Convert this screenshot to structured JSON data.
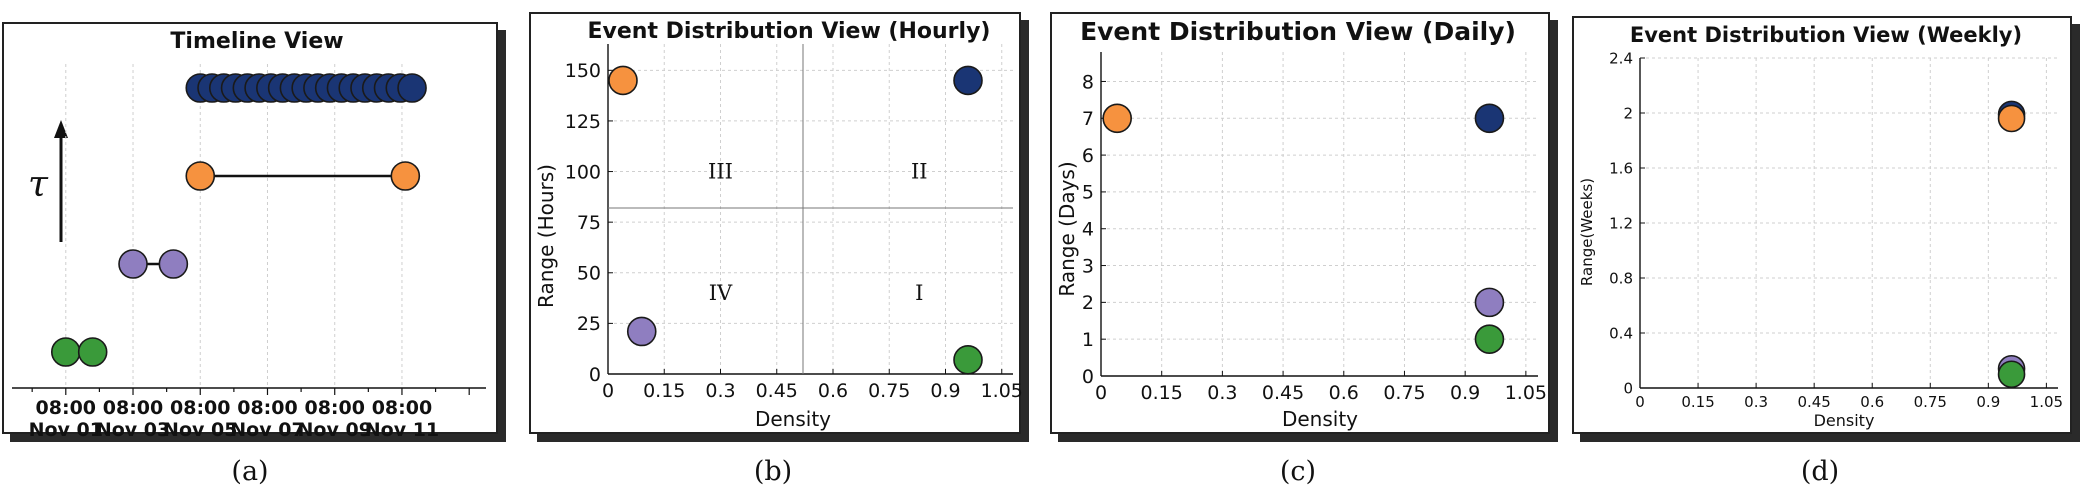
{
  "captions": [
    "(a)",
    "(b)",
    "(c)",
    "(d)"
  ],
  "colors": {
    "green": "#3a9a3a",
    "purple": "#8f7ec0",
    "orange": "#f6923f",
    "navy": "#1a3574"
  },
  "chart_data": [
    {
      "type": "timeline",
      "title": "Timeline View",
      "tau_label": "τ",
      "x_ticks": [
        {
          "time": "08:00",
          "date": "Nov 01"
        },
        {
          "time": "08:00",
          "date": "Nov 03"
        },
        {
          "time": "08:00",
          "date": "Nov 05"
        },
        {
          "time": "08:00",
          "date": "Nov 07"
        },
        {
          "time": "08:00",
          "date": "Nov 09"
        },
        {
          "time": "08:00",
          "date": "Nov 11"
        }
      ],
      "x_domain": [
        -1.6,
        12.5
      ],
      "rows": [
        {
          "color": "green",
          "level": 1,
          "points": [
            0,
            0.8
          ],
          "connected": false
        },
        {
          "color": "purple",
          "level": 2,
          "points": [
            2,
            3.2
          ],
          "connected": true
        },
        {
          "color": "orange",
          "level": 3,
          "points": [
            4,
            10.1
          ],
          "connected": true
        },
        {
          "color": "navy",
          "level": 4,
          "points": [
            4.0,
            4.35,
            4.7,
            5.05,
            5.4,
            5.75,
            6.1,
            6.45,
            6.8,
            7.15,
            7.5,
            7.85,
            8.2,
            8.55,
            8.9,
            9.25,
            9.6,
            9.95,
            10.3
          ],
          "connected": false
        }
      ]
    },
    {
      "type": "scatter",
      "title": "Event Distribution View (Hourly)",
      "xlabel": "Density",
      "ylabel": "Range (Hours)",
      "xlim": [
        0,
        1.08
      ],
      "ylim": [
        0,
        163
      ],
      "x_ticks": [
        "0",
        "0.15",
        "0.3",
        "0.45",
        "0.6",
        "0.75",
        "0.9",
        "1.05"
      ],
      "y_ticks": [
        "0",
        "25",
        "50",
        "75",
        "100",
        "125",
        "150"
      ],
      "divider": {
        "x": 0.52,
        "y": 82
      },
      "quadrant_labels": [
        {
          "text": "III",
          "x": 0.3,
          "y": 100
        },
        {
          "text": "II",
          "x": 0.83,
          "y": 100
        },
        {
          "text": "IV",
          "x": 0.3,
          "y": 40
        },
        {
          "text": "I",
          "x": 0.83,
          "y": 40
        }
      ],
      "points": [
        {
          "series": "orange",
          "x": 0.04,
          "y": 145
        },
        {
          "series": "navy",
          "x": 0.96,
          "y": 145
        },
        {
          "series": "purple",
          "x": 0.09,
          "y": 21
        },
        {
          "series": "green",
          "x": 0.96,
          "y": 7
        }
      ]
    },
    {
      "type": "scatter",
      "title": "Event Distribution View (Daily)",
      "xlabel": "Density",
      "ylabel": "Range (Days)",
      "xlim": [
        0,
        1.08
      ],
      "ylim": [
        0,
        8.8
      ],
      "x_ticks": [
        "0",
        "0.15",
        "0.3",
        "0.45",
        "0.6",
        "0.75",
        "0.9",
        "1.05"
      ],
      "y_ticks": [
        "0",
        "1",
        "2",
        "3",
        "4",
        "5",
        "6",
        "7",
        "8"
      ],
      "points": [
        {
          "series": "orange",
          "x": 0.04,
          "y": 7
        },
        {
          "series": "navy",
          "x": 0.96,
          "y": 7
        },
        {
          "series": "purple",
          "x": 0.96,
          "y": 2
        },
        {
          "series": "green",
          "x": 0.96,
          "y": 1
        }
      ]
    },
    {
      "type": "scatter",
      "title": "Event Distribution View (Weekly)",
      "xlabel": "Density",
      "ylabel": "Range(Weeks)",
      "xlim": [
        0,
        1.08
      ],
      "ylim": [
        0,
        2.4
      ],
      "x_ticks": [
        "0",
        "0.15",
        "0.3",
        "0.45",
        "0.6",
        "0.75",
        "0.9",
        "1.05"
      ],
      "y_ticks": [
        "0",
        "0.4",
        "0.8",
        "1.2",
        "1.6",
        "2",
        "2.4"
      ],
      "points": [
        {
          "series": "navy",
          "x": 0.96,
          "y": 1.99
        },
        {
          "series": "orange",
          "x": 0.96,
          "y": 1.96
        },
        {
          "series": "purple",
          "x": 0.96,
          "y": 0.14
        },
        {
          "series": "green",
          "x": 0.96,
          "y": 0.1
        }
      ]
    }
  ]
}
